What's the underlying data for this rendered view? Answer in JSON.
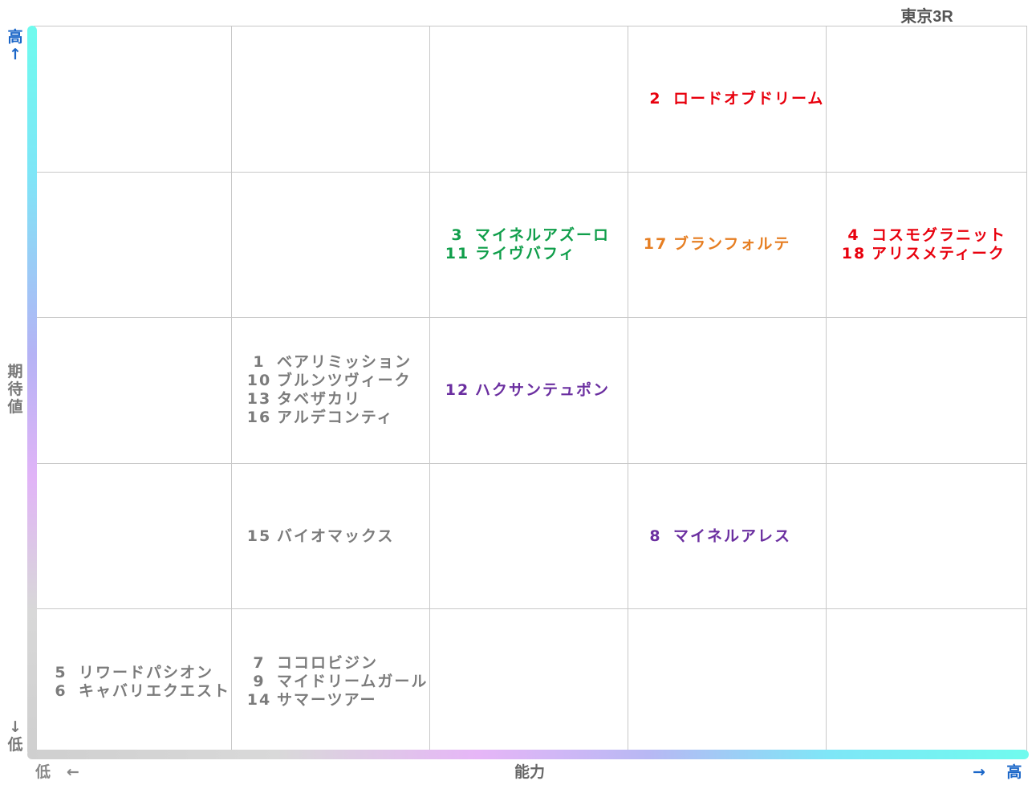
{
  "title": "東京3R",
  "y_axis": {
    "high_label": "高",
    "high_arrow": "↑",
    "label": "期待値",
    "low_arrow": "↓",
    "low_label": "低"
  },
  "x_axis": {
    "low_label": "低",
    "low_arrow": "←",
    "label": "能力",
    "high_arrow": "→",
    "high_label": "高"
  },
  "colors": {
    "red": "#e8000d",
    "green": "#0f9e4a",
    "orange": "#e67e22",
    "purple": "#6b2fa0",
    "gray": "#7b7b7b",
    "accent_blue": "#1a66c8"
  },
  "chart_data": {
    "type": "table",
    "title": "東京3R",
    "xlabel": "能力",
    "ylabel": "期待値",
    "columns": 5,
    "rows": 5,
    "cells": [
      {
        "row": 1,
        "col": 4,
        "color": "red",
        "entries": [
          {
            "num": "2",
            "name": "ロードオブドリーム"
          }
        ]
      },
      {
        "row": 2,
        "col": 3,
        "color": "green",
        "entries": [
          {
            "num": "3",
            "name": "マイネルアズーロ"
          },
          {
            "num": "11",
            "name": "ライヴバフィ"
          }
        ]
      },
      {
        "row": 2,
        "col": 4,
        "color": "orange",
        "entries": [
          {
            "num": "17",
            "name": "ブランフォルテ"
          }
        ]
      },
      {
        "row": 2,
        "col": 5,
        "color": "red",
        "entries": [
          {
            "num": "4",
            "name": "コスモグラニット"
          },
          {
            "num": "18",
            "name": "アリスメティーク"
          }
        ]
      },
      {
        "row": 3,
        "col": 2,
        "color": "gray",
        "entries": [
          {
            "num": "1",
            "name": "ベアリミッション"
          },
          {
            "num": "10",
            "name": "ブルンツヴィーク"
          },
          {
            "num": "13",
            "name": "タベザカリ"
          },
          {
            "num": "16",
            "name": "アルデコンティ"
          }
        ]
      },
      {
        "row": 3,
        "col": 3,
        "color": "purple",
        "entries": [
          {
            "num": "12",
            "name": "ハクサンテュポン"
          }
        ]
      },
      {
        "row": 4,
        "col": 2,
        "color": "gray",
        "entries": [
          {
            "num": "15",
            "name": "バイオマックス"
          }
        ]
      },
      {
        "row": 4,
        "col": 4,
        "color": "purple",
        "entries": [
          {
            "num": "8",
            "name": "マイネルアレス"
          }
        ]
      },
      {
        "row": 5,
        "col": 1,
        "color": "gray",
        "entries": [
          {
            "num": "5",
            "name": "リワードパシオン"
          },
          {
            "num": "6",
            "name": "キャバリエクエスト"
          }
        ]
      },
      {
        "row": 5,
        "col": 2,
        "color": "gray",
        "entries": [
          {
            "num": "7",
            "name": "ココロビジン"
          },
          {
            "num": "9",
            "name": "マイドリームガール"
          },
          {
            "num": "14",
            "name": "サマーツアー"
          }
        ]
      }
    ]
  }
}
